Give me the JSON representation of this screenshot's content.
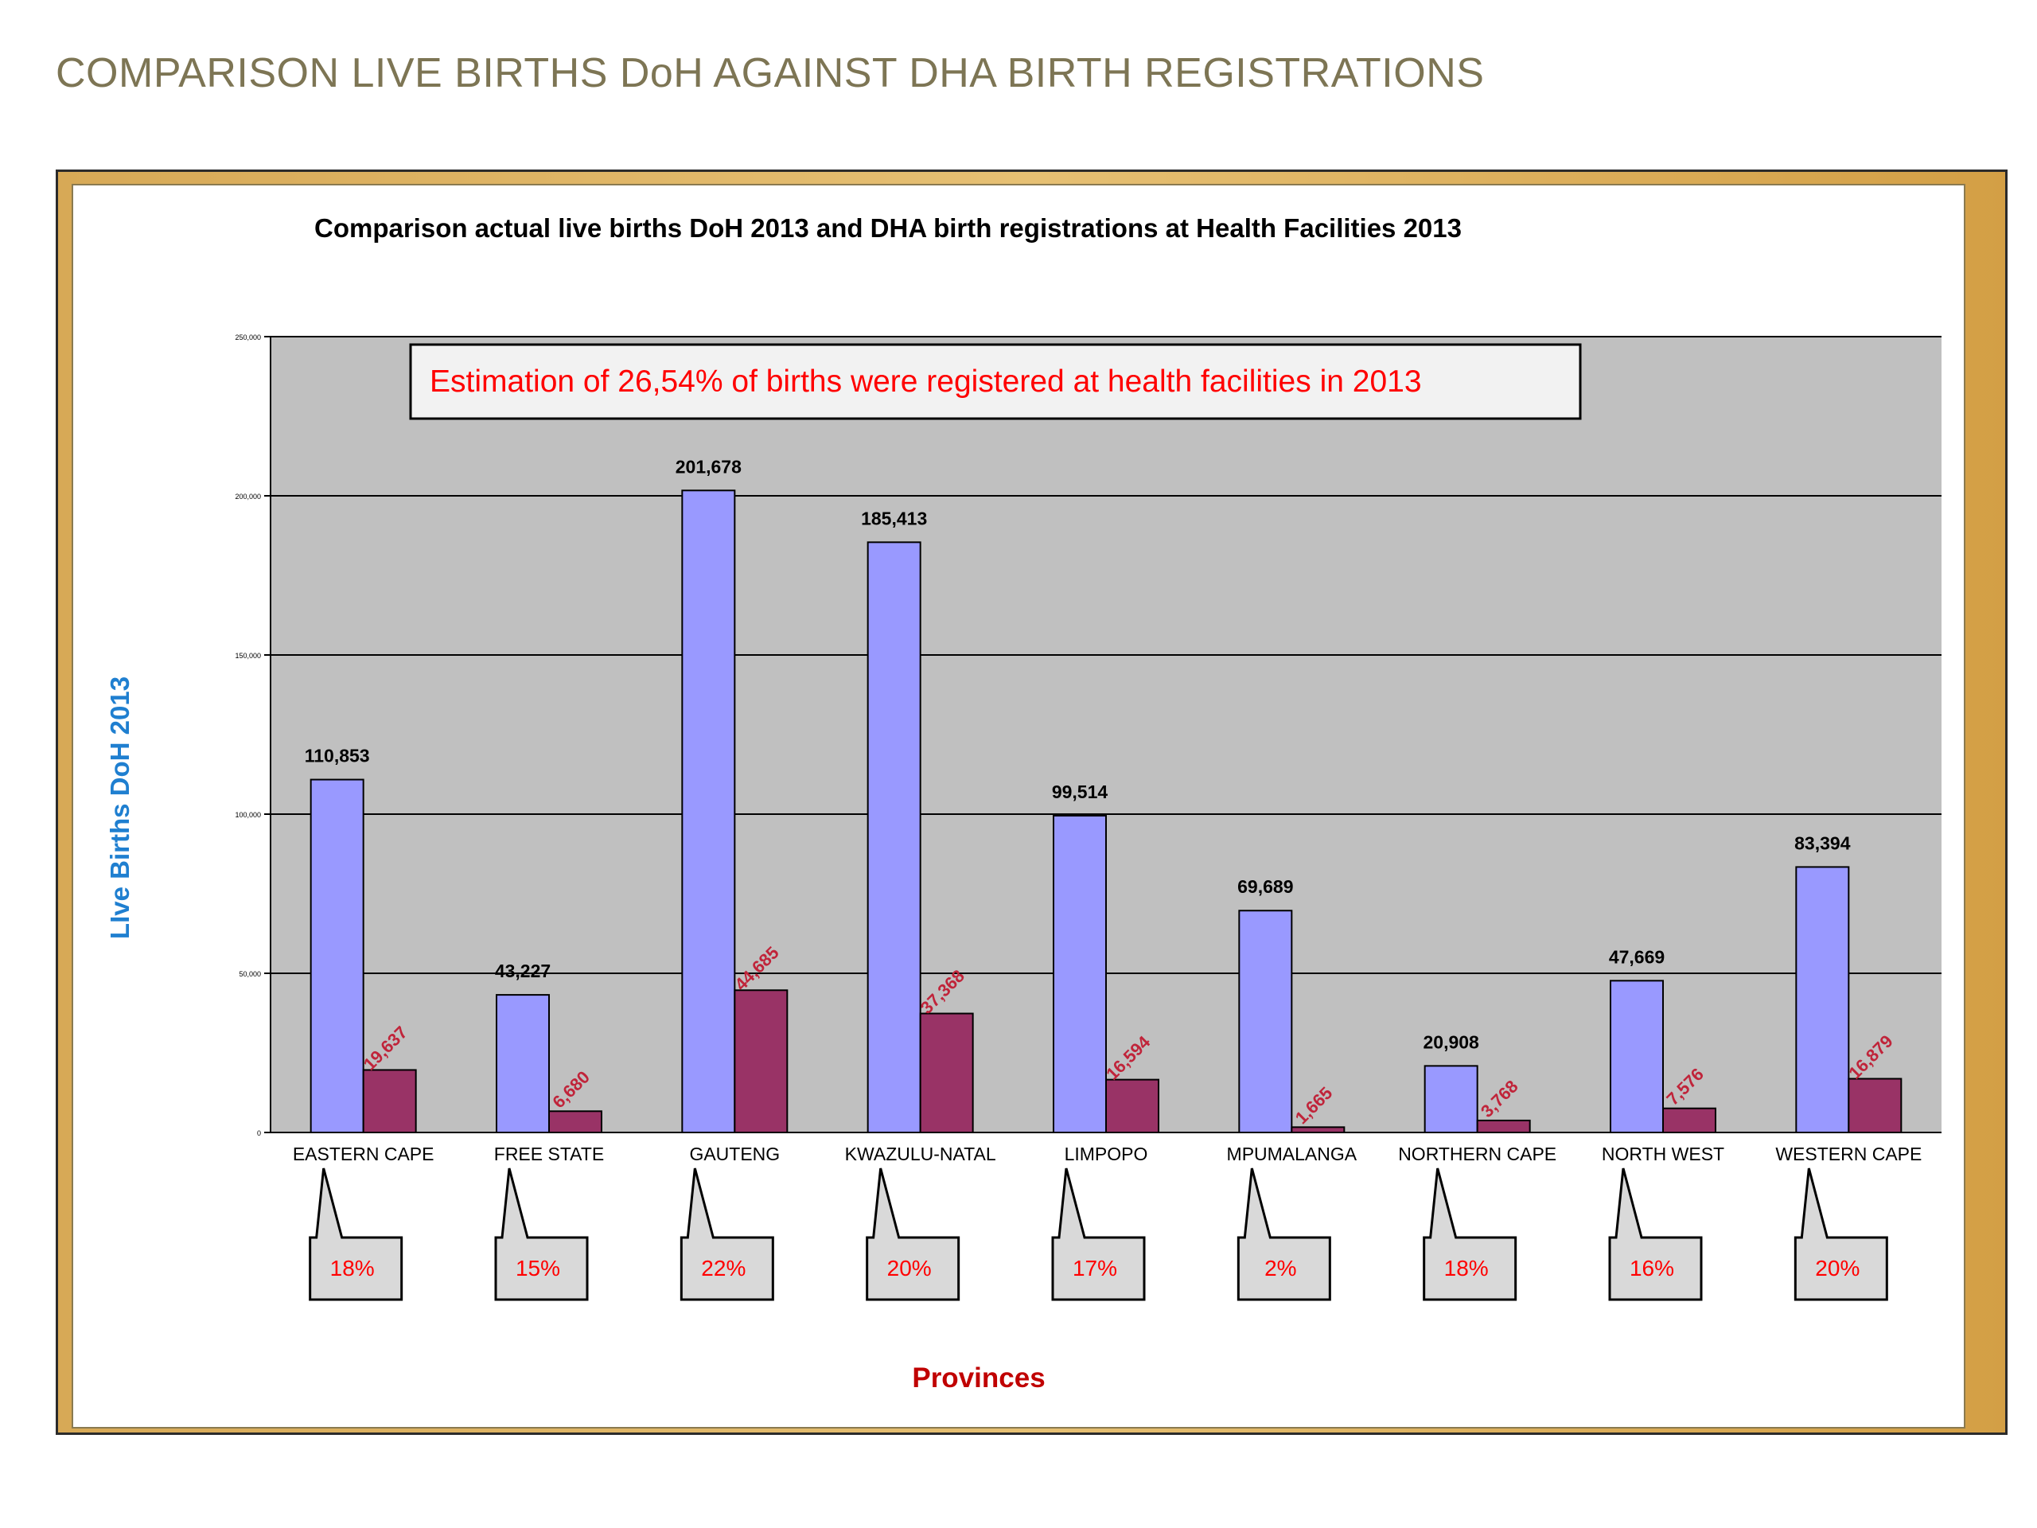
{
  "slide": {
    "title": "COMPARISON LIVE BIRTHS DoH AGAINST DHA BIRTH REGISTRATIONS"
  },
  "colors": {
    "plot_bg": "#c0c0c0",
    "series_doh": "#9999ff",
    "series_dha": "#993366",
    "dha_label": "#c0243a",
    "axis_title_y": "#1f7fd0",
    "axis_title_x": "#c00000",
    "annotation_text": "#ff0000",
    "frame_gold": "#d9a94f"
  },
  "chart_data": {
    "type": "bar",
    "title": "Comparison actual live births DoH 2013 and DHA birth registrations at Health Facilities 2013",
    "xlabel": "Provinces",
    "ylabel": "LIve Births DoH 2013",
    "ylim": [
      0,
      250000
    ],
    "yticks": [
      0,
      50000,
      100000,
      150000,
      200000,
      250000
    ],
    "ytick_labels": [
      "0",
      "50,000",
      "100,000",
      "150,000",
      "200,000",
      "250,000"
    ],
    "grid": true,
    "legend": "none",
    "categories": [
      "EASTERN CAPE",
      "FREE STATE",
      "GAUTENG",
      "KWAZULU-NATAL",
      "LIMPOPO",
      "MPUMALANGA",
      "NORTHERN CAPE",
      "NORTH WEST",
      "WESTERN CAPE"
    ],
    "series": [
      {
        "values": [
          110853,
          43227,
          201678,
          185413,
          99514,
          69689,
          20908,
          47669,
          83394
        ],
        "labels": [
          "110,853",
          "43,227",
          "201,678",
          "185,413",
          "99,514",
          "69,689",
          "20,908",
          "47,669",
          "83,394"
        ]
      },
      {
        "values": [
          19637,
          6680,
          44685,
          37368,
          16594,
          1665,
          3768,
          7576,
          16879
        ],
        "labels": [
          "19,637",
          "6,680",
          "44,685",
          "37,368",
          "16,594",
          "1,665",
          "3,768",
          "7,576",
          "16,879"
        ]
      }
    ],
    "percentages": [
      "18%",
      "15%",
      "22%",
      "20%",
      "17%",
      "2%",
      "18%",
      "16%",
      "20%"
    ],
    "annotation": "Estimation of 26,54% of births were registered at health facilities in 2013"
  }
}
